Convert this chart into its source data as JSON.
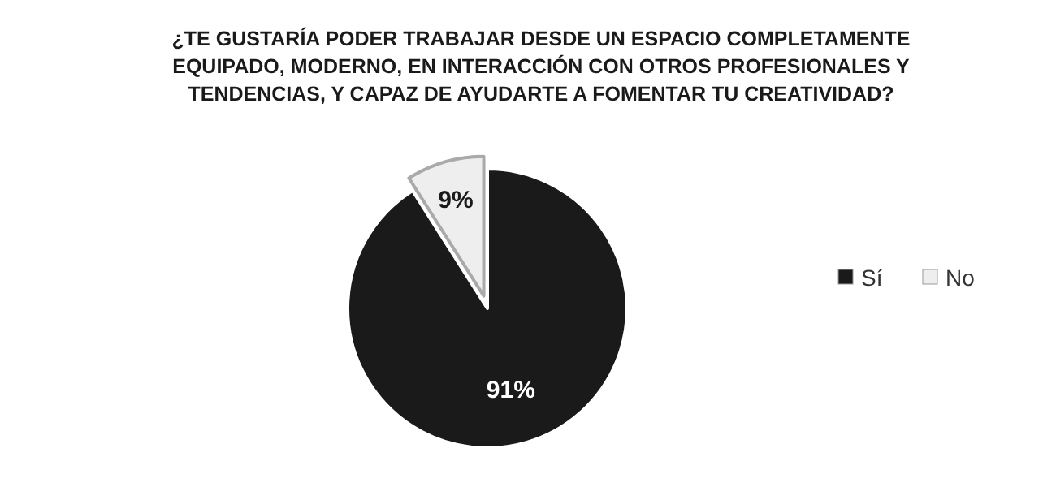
{
  "chart_data": {
    "type": "pie",
    "title": "¿TE GUSTARÍA PODER TRABAJAR DESDE UN ESPACIO COMPLETAMENTE EQUIPADO, MODERNO, EN INTERACCIÓN CON OTROS PROFESIONALES Y TENDENCIAS, Y CAPAZ DE AYUDARTE A FOMENTAR TU CREATIVIDAD?",
    "categories": [
      "Sí",
      "No"
    ],
    "values": [
      91,
      9
    ],
    "colors": [
      "#1a1a1a",
      "#eeeeee"
    ],
    "value_labels": [
      "91%",
      "9%"
    ],
    "legend": "right"
  }
}
